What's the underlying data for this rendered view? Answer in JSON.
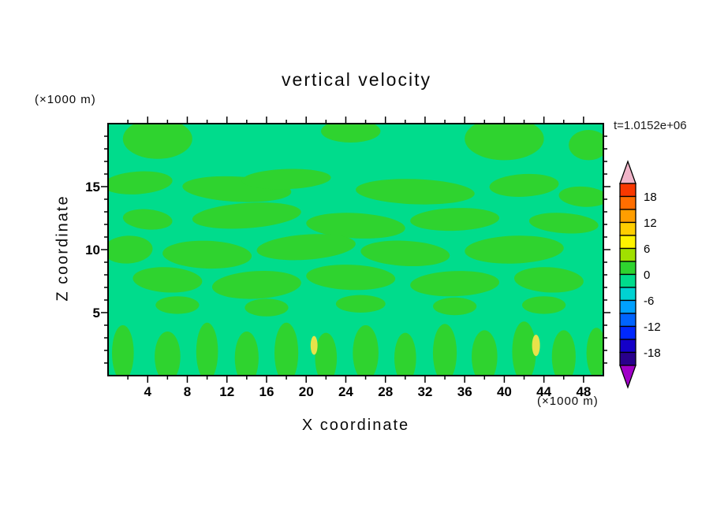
{
  "chart_data": {
    "type": "heatmap",
    "subtype": "filled-contour",
    "title": "vertical velocity",
    "time_annotation": "t=1.0152e+06",
    "xlabel": "X coordinate",
    "xunit": "(×1000 m)",
    "ylabel": "Z coordinate",
    "yunit": "(×1000 m)",
    "xlim": [
      0,
      50
    ],
    "ylim": [
      0,
      20
    ],
    "x_ticks": [
      4,
      8,
      12,
      16,
      20,
      24,
      28,
      32,
      36,
      40,
      44,
      48
    ],
    "y_ticks": [
      5,
      10,
      15
    ],
    "x_minor_step": 2,
    "x_major_every": 4,
    "y_minor_step": 1,
    "y_major_every": 5,
    "grid": false,
    "colorbar": {
      "position": "right",
      "labels": [
        18,
        12,
        6,
        0,
        -6,
        -12,
        -18
      ],
      "level_step": 3,
      "range": [
        -21,
        21
      ],
      "segment_colors_top_to_bottom": [
        "#f83800",
        "#ff6e00",
        "#ff9e00",
        "#ffce00",
        "#fff400",
        "#a0e000",
        "#2fd32f",
        "#00dc8c",
        "#00d2d2",
        "#00a0ff",
        "#0064ff",
        "#0028ff",
        "#1400c8",
        "#28008c"
      ],
      "over_arrow_color": "#f0b4c8",
      "under_arrow_color": "#a000c8"
    },
    "field": {
      "description": "mostly values in the -3..0 band (spring green) with elongated updraft patches in the 0..3 band (green) and two small yellow spots near the surface",
      "background_color": "#00dc8c",
      "updraft_color": "#2fd32f",
      "updraft_blobs_x_z_rx_rz_rot": [
        [
          3,
          15.3,
          3.5,
          0.9,
          -4
        ],
        [
          13,
          14.8,
          5.5,
          1.0,
          3
        ],
        [
          18,
          15.6,
          4.5,
          0.8,
          -2
        ],
        [
          31,
          14.6,
          6,
          1.0,
          2
        ],
        [
          42,
          15.1,
          3.5,
          0.9,
          -3
        ],
        [
          48,
          14.2,
          2.5,
          0.8,
          4
        ],
        [
          4,
          12.4,
          2.5,
          0.8,
          5
        ],
        [
          14,
          12.7,
          5.5,
          1.0,
          -4
        ],
        [
          25,
          11.9,
          5,
          1.0,
          3
        ],
        [
          35,
          12.4,
          4.5,
          0.9,
          -2
        ],
        [
          46,
          12.1,
          3.5,
          0.8,
          4
        ],
        [
          2,
          10,
          2.5,
          1.1,
          -3
        ],
        [
          10,
          9.6,
          4.5,
          1.1,
          2
        ],
        [
          20,
          10.2,
          5,
          1.0,
          -4
        ],
        [
          30,
          9.7,
          4.5,
          1.0,
          3
        ],
        [
          41,
          10,
          5,
          1.1,
          -2
        ],
        [
          6,
          7.6,
          3.5,
          1.0,
          3
        ],
        [
          15,
          7.2,
          4.5,
          1.1,
          -3
        ],
        [
          24.5,
          7.8,
          4.5,
          1.0,
          2
        ],
        [
          35,
          7.3,
          4.5,
          1.0,
          -2
        ],
        [
          44.5,
          7.6,
          3.5,
          1.0,
          3
        ],
        [
          7,
          5.6,
          2.2,
          0.7,
          0
        ],
        [
          16,
          5.4,
          2.2,
          0.7,
          0
        ],
        [
          25.5,
          5.7,
          2.5,
          0.7,
          0
        ],
        [
          35,
          5.5,
          2.2,
          0.7,
          0
        ],
        [
          44,
          5.6,
          2.2,
          0.7,
          0
        ],
        [
          5,
          18.8,
          3.5,
          1.6,
          0
        ],
        [
          24.5,
          19.4,
          3,
          0.9,
          0
        ],
        [
          40,
          18.8,
          4,
          1.7,
          0
        ],
        [
          48.5,
          18.3,
          2,
          1.2,
          0
        ],
        [
          1.5,
          1.8,
          1.1,
          2.2,
          0
        ],
        [
          6,
          1.5,
          1.3,
          2.0,
          0
        ],
        [
          10,
          1.9,
          1.1,
          2.3,
          0
        ],
        [
          14,
          1.4,
          1.2,
          2.1,
          0
        ],
        [
          18,
          1.8,
          1.2,
          2.4,
          0
        ],
        [
          22,
          1.4,
          1.1,
          2.0,
          0
        ],
        [
          26,
          1.8,
          1.3,
          2.2,
          0
        ],
        [
          30,
          1.4,
          1.1,
          2.0,
          0
        ],
        [
          34,
          1.8,
          1.2,
          2.3,
          0
        ],
        [
          38,
          1.5,
          1.3,
          2.1,
          0
        ],
        [
          42,
          1.9,
          1.2,
          2.4,
          0
        ],
        [
          46,
          1.5,
          1.2,
          2.1,
          0
        ],
        [
          49.3,
          1.8,
          1.0,
          2.0,
          0
        ]
      ],
      "spot_color": "#e8e24a",
      "spots_x_z_rx_rz": [
        [
          20.8,
          2.4,
          0.35,
          0.75
        ],
        [
          43.2,
          2.4,
          0.4,
          0.85
        ]
      ]
    }
  }
}
